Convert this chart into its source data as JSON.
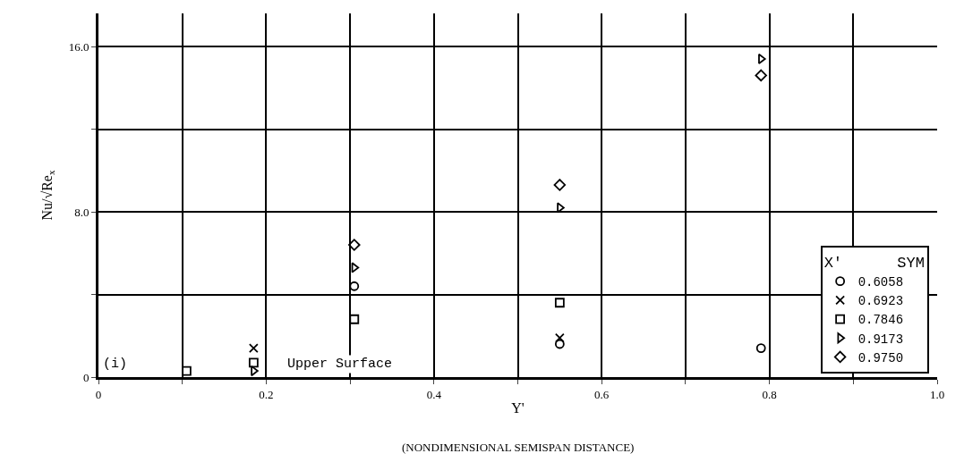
{
  "chart_data": {
    "type": "scatter",
    "xlabel": "Y'",
    "ylabel": "Nu/√Re$_{x}$",
    "legend_title": "X'      SYM",
    "annotations": [
      "(i)",
      "Upper Surface",
      "(NONDIMENSIONAL SEMISPAN DISTANCE)"
    ],
    "series": [
      {
        "name": "0.6058",
        "color": "#000000",
        "marker": "circle",
        "x": [
          0.305,
          0.55,
          0.79
        ],
        "values": [
          4.4,
          1.6,
          1.4
        ]
      },
      {
        "name": "0.6923",
        "color": "#000000",
        "marker": "cross",
        "x": [
          0.185,
          0.55
        ],
        "values": [
          1.4,
          1.9
        ]
      },
      {
        "name": "0.7846",
        "color": "#000000",
        "marker": "square",
        "x": [
          0.105,
          0.185,
          0.305,
          0.55
        ],
        "values": [
          0.3,
          0.7,
          2.8,
          3.6
        ]
      },
      {
        "name": "0.9173",
        "color": "#000000",
        "marker": "triangle",
        "x": [
          0.185,
          0.305,
          0.55,
          0.79
        ],
        "values": [
          0.3,
          5.3,
          8.2,
          15.4
        ]
      },
      {
        "name": "0.9750",
        "color": "#000000",
        "marker": "diamond",
        "x": [
          0.305,
          0.55,
          0.79
        ],
        "values": [
          6.4,
          9.3,
          14.6
        ]
      }
    ],
    "xlim": [
      0,
      1.0
    ],
    "ylim": [
      0,
      17.6
    ],
    "xticks": [
      0,
      {
        "value": 0.1,
        "label": null
      },
      0.2,
      {
        "value": 0.3,
        "label": null
      },
      0.4,
      {
        "value": 0.5,
        "label": null
      },
      0.6,
      {
        "value": 0.7,
        "label": null
      },
      0.8,
      {
        "value": 0.9,
        "label": null
      },
      {
        "value": 1.0,
        "label": "1.0"
      }
    ],
    "yticks": [
      0,
      {
        "value": 4,
        "label": null
      },
      {
        "value": 8,
        "label": "8.0"
      },
      {
        "value": 12,
        "label": null
      },
      {
        "value": 16,
        "label": "16.0"
      }
    ],
    "grid": true,
    "legend": "bottom right"
  }
}
